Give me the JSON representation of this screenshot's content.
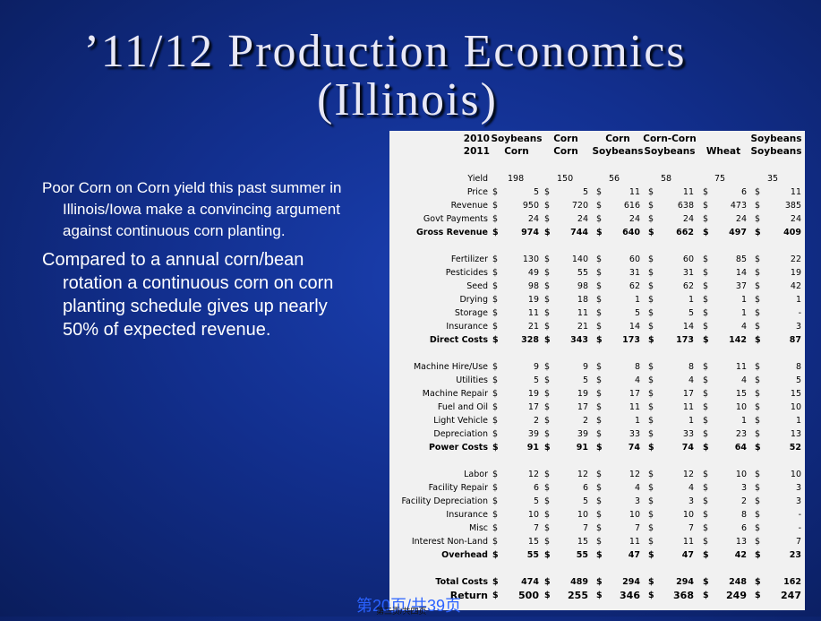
{
  "title": {
    "line1": "’11/12 Production Economics",
    "line2": "(Illinois)"
  },
  "bullets": [
    "Poor Corn on Corn yield this past summer in Illinois/Iowa make a convincing argument against continuous corn planting.",
    "Compared to a annual corn/bean rotation a continuous corn on corn planting schedule gives up nearly 50% of expected revenue."
  ],
  "table": {
    "year_labels": [
      "2010",
      "2011"
    ],
    "columns": [
      {
        "top": "Soybeans",
        "bottom": "Corn"
      },
      {
        "top": "Corn",
        "bottom": "Corn"
      },
      {
        "top": "Corn",
        "bottom": "Soybeans"
      },
      {
        "top": "Corn-Corn",
        "bottom": "Soybeans"
      },
      {
        "top": "",
        "bottom": "Wheat"
      },
      {
        "top": "Soybeans",
        "bottom": "Soybeans"
      }
    ],
    "rows": [
      {
        "label": "Yield",
        "dollar": false,
        "values": [
          "198",
          "150",
          "56",
          "58",
          "75",
          "35"
        ]
      },
      {
        "label": "Price",
        "dollar": true,
        "values": [
          "5",
          "5",
          "11",
          "11",
          "6",
          "11"
        ]
      },
      {
        "label": "Revenue",
        "dollar": true,
        "values": [
          "950",
          "720",
          "616",
          "638",
          "473",
          "385"
        ]
      },
      {
        "label": "Govt Payments",
        "dollar": true,
        "values": [
          "24",
          "24",
          "24",
          "24",
          "24",
          "24"
        ]
      },
      {
        "label": "Gross Revenue",
        "dollar": true,
        "bold": true,
        "values": [
          "974",
          "744",
          "640",
          "662",
          "497",
          "409"
        ]
      },
      {
        "label": "Fertilizer",
        "dollar": true,
        "values": [
          "130",
          "140",
          "60",
          "60",
          "85",
          "22"
        ]
      },
      {
        "label": "Pesticides",
        "dollar": true,
        "values": [
          "49",
          "55",
          "31",
          "31",
          "14",
          "19"
        ]
      },
      {
        "label": "Seed",
        "dollar": true,
        "values": [
          "98",
          "98",
          "62",
          "62",
          "37",
          "42"
        ]
      },
      {
        "label": "Drying",
        "dollar": true,
        "values": [
          "19",
          "18",
          "1",
          "1",
          "1",
          "1"
        ]
      },
      {
        "label": "Storage",
        "dollar": true,
        "values": [
          "11",
          "11",
          "5",
          "5",
          "1",
          "-"
        ]
      },
      {
        "label": "Insurance",
        "dollar": true,
        "values": [
          "21",
          "21",
          "14",
          "14",
          "4",
          "3"
        ]
      },
      {
        "label": "Direct Costs",
        "dollar": true,
        "bold": true,
        "values": [
          "328",
          "343",
          "173",
          "173",
          "142",
          "87"
        ]
      },
      {
        "label": "Machine Hire/Use",
        "dollar": true,
        "values": [
          "9",
          "9",
          "8",
          "8",
          "11",
          "8"
        ]
      },
      {
        "label": "Utilities",
        "dollar": true,
        "values": [
          "5",
          "5",
          "4",
          "4",
          "4",
          "5"
        ]
      },
      {
        "label": "Machine Repair",
        "dollar": true,
        "values": [
          "19",
          "19",
          "17",
          "17",
          "15",
          "15"
        ]
      },
      {
        "label": "Fuel and Oil",
        "dollar": true,
        "values": [
          "17",
          "17",
          "11",
          "11",
          "10",
          "10"
        ]
      },
      {
        "label": "Light Vehicle",
        "dollar": true,
        "values": [
          "2",
          "2",
          "1",
          "1",
          "1",
          "1"
        ]
      },
      {
        "label": "Depreciation",
        "dollar": true,
        "values": [
          "39",
          "39",
          "33",
          "33",
          "23",
          "13"
        ]
      },
      {
        "label": "Power Costs",
        "dollar": true,
        "bold": true,
        "values": [
          "91",
          "91",
          "74",
          "74",
          "64",
          "52"
        ]
      },
      {
        "label": "Labor",
        "dollar": true,
        "values": [
          "12",
          "12",
          "12",
          "12",
          "10",
          "10"
        ]
      },
      {
        "label": "Facility Repair",
        "dollar": true,
        "values": [
          "6",
          "6",
          "4",
          "4",
          "3",
          "3"
        ]
      },
      {
        "label": "Facility Depreciation",
        "dollar": true,
        "values": [
          "5",
          "5",
          "3",
          "3",
          "2",
          "3"
        ]
      },
      {
        "label": "Insurance",
        "dollar": true,
        "values": [
          "10",
          "10",
          "10",
          "10",
          "8",
          "-"
        ]
      },
      {
        "label": "Misc",
        "dollar": true,
        "values": [
          "7",
          "7",
          "7",
          "7",
          "6",
          "-"
        ]
      },
      {
        "label": "Interest Non-Land",
        "dollar": true,
        "values": [
          "15",
          "15",
          "11",
          "11",
          "13",
          "7"
        ]
      },
      {
        "label": "Overhead",
        "dollar": true,
        "bold": true,
        "values": [
          "55",
          "55",
          "47",
          "47",
          "42",
          "23"
        ]
      },
      {
        "label": "Total Costs",
        "dollar": true,
        "bold": true,
        "values": [
          "474",
          "489",
          "294",
          "294",
          "248",
          "162"
        ]
      },
      {
        "label": "Return",
        "dollar": true,
        "bold": true,
        "big": true,
        "values": [
          "500",
          "255",
          "346",
          "368",
          "249",
          "247"
        ]
      }
    ]
  },
  "footer": {
    "page": "第20页/共39页",
    "small": "第三页/共四页"
  }
}
